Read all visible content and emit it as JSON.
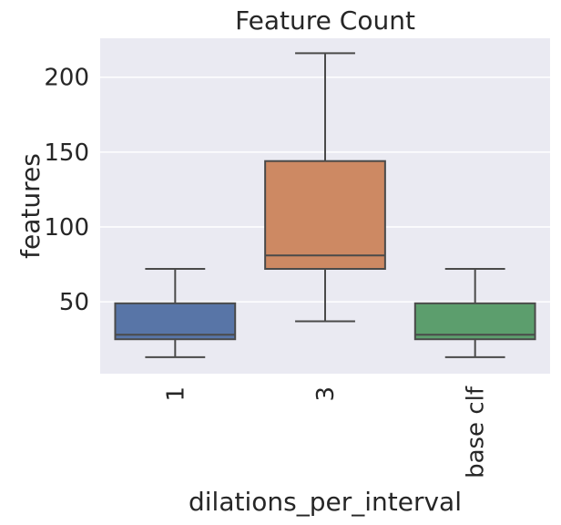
{
  "chart_data": {
    "type": "box",
    "title": "Feature Count",
    "xlabel": "dilations_per_interval",
    "ylabel": "features",
    "categories": [
      "1",
      "3",
      "base clf"
    ],
    "ylim": [
      2,
      226
    ],
    "yticks": [
      50,
      100,
      150,
      200
    ],
    "grid": true,
    "boxes": [
      {
        "category": "1",
        "whisker_low": 13,
        "q1": 25,
        "median": 28,
        "q3": 49,
        "whisker_high": 72,
        "color": "#5875a7"
      },
      {
        "category": "3",
        "whisker_low": 37,
        "q1": 72,
        "median": 81,
        "q3": 144,
        "whisker_high": 216,
        "color": "#cd8963"
      },
      {
        "category": "base clf",
        "whisker_low": 13,
        "q1": 25,
        "median": 28,
        "q3": 49,
        "whisker_high": 72,
        "color": "#5c9e6d"
      }
    ],
    "plot_background": "#eaeaf2",
    "grid_color": "#ffffff",
    "line_color": "#4a4a4a"
  }
}
